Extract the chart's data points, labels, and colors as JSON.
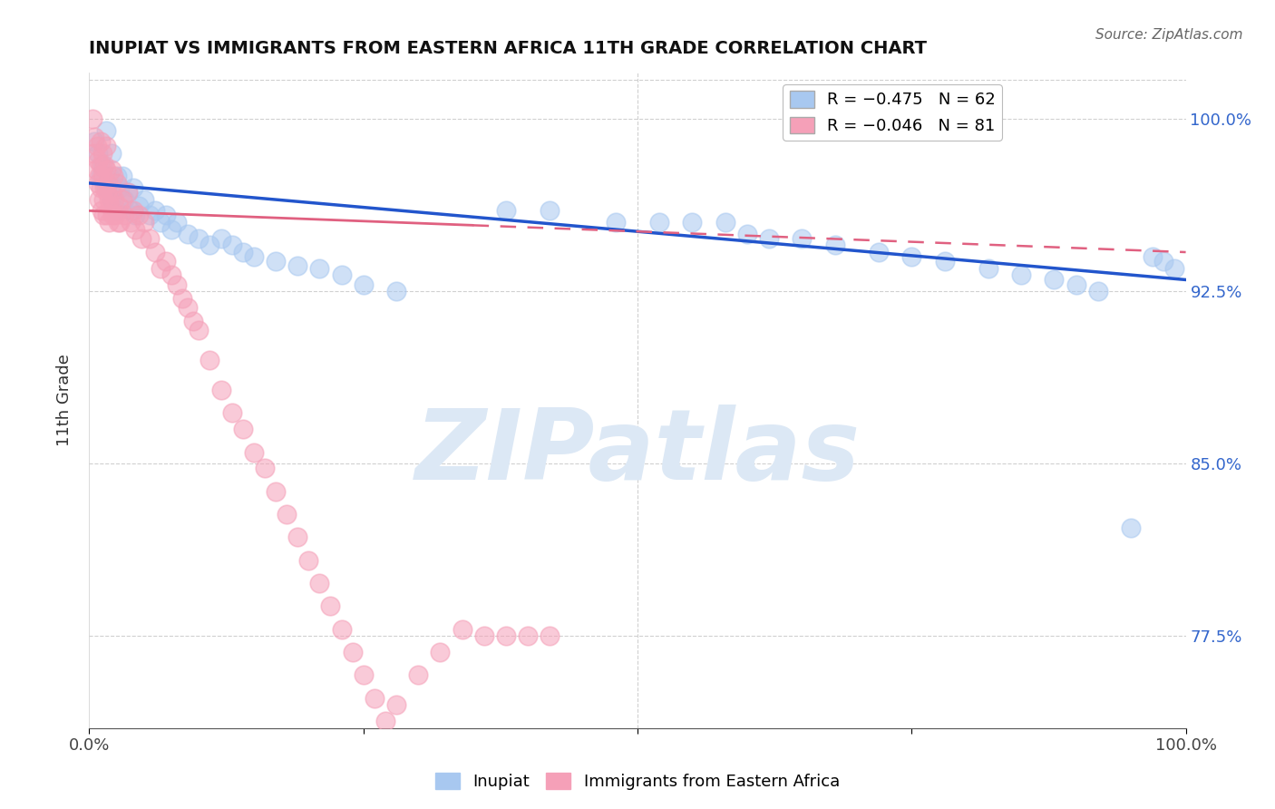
{
  "title": "INUPIAT VS IMMIGRANTS FROM EASTERN AFRICA 11TH GRADE CORRELATION CHART",
  "source_text": "Source: ZipAtlas.com",
  "ylabel": "11th Grade",
  "x_min": 0.0,
  "x_max": 1.0,
  "y_min": 0.735,
  "y_max": 1.02,
  "x_tick_labels": [
    "0.0%",
    "",
    "",
    "",
    "100.0%"
  ],
  "x_ticks": [
    0.0,
    0.25,
    0.5,
    0.75,
    1.0
  ],
  "y_tick_labels_right": [
    "77.5%",
    "85.0%",
    "92.5%",
    "100.0%"
  ],
  "y_ticks_right": [
    0.775,
    0.85,
    0.925,
    1.0
  ],
  "inupiat_color": "#a8c8f0",
  "eastern_africa_color": "#f5a0b8",
  "inupiat_line_color": "#2255cc",
  "eastern_africa_line_color": "#e06080",
  "watermark_color": "#dce8f5",
  "watermark_text": "ZIPatlas",
  "legend_label1": "R = −0.475   N = 62",
  "legend_label2": "R = −0.046   N = 81",
  "inupiat_x": [
    0.005,
    0.008,
    0.01,
    0.012,
    0.015,
    0.015,
    0.018,
    0.02,
    0.02,
    0.022,
    0.025,
    0.025,
    0.028,
    0.03,
    0.032,
    0.035,
    0.038,
    0.04,
    0.042,
    0.045,
    0.05,
    0.055,
    0.06,
    0.065,
    0.07,
    0.075,
    0.08,
    0.09,
    0.1,
    0.11,
    0.12,
    0.13,
    0.14,
    0.15,
    0.17,
    0.19,
    0.21,
    0.23,
    0.25,
    0.28,
    0.38,
    0.42,
    0.48,
    0.52,
    0.55,
    0.58,
    0.6,
    0.62,
    0.65,
    0.68,
    0.72,
    0.75,
    0.78,
    0.82,
    0.85,
    0.88,
    0.9,
    0.92,
    0.95,
    0.97,
    0.98,
    0.99
  ],
  "inupiat_y": [
    0.99,
    0.985,
    0.975,
    0.98,
    0.995,
    0.97,
    0.975,
    0.985,
    0.965,
    0.97,
    0.975,
    0.96,
    0.97,
    0.975,
    0.965,
    0.968,
    0.96,
    0.97,
    0.958,
    0.962,
    0.965,
    0.958,
    0.96,
    0.955,
    0.958,
    0.952,
    0.955,
    0.95,
    0.948,
    0.945,
    0.948,
    0.945,
    0.942,
    0.94,
    0.938,
    0.936,
    0.935,
    0.932,
    0.928,
    0.925,
    0.96,
    0.96,
    0.955,
    0.955,
    0.955,
    0.955,
    0.95,
    0.948,
    0.948,
    0.945,
    0.942,
    0.94,
    0.938,
    0.935,
    0.932,
    0.93,
    0.928,
    0.925,
    0.822,
    0.94,
    0.938,
    0.935
  ],
  "eastern_africa_x": [
    0.003,
    0.004,
    0.005,
    0.006,
    0.007,
    0.008,
    0.008,
    0.009,
    0.009,
    0.01,
    0.01,
    0.01,
    0.011,
    0.012,
    0.012,
    0.013,
    0.013,
    0.014,
    0.014,
    0.015,
    0.015,
    0.016,
    0.016,
    0.017,
    0.018,
    0.018,
    0.019,
    0.02,
    0.02,
    0.021,
    0.022,
    0.023,
    0.024,
    0.025,
    0.026,
    0.027,
    0.028,
    0.03,
    0.032,
    0.035,
    0.038,
    0.04,
    0.042,
    0.045,
    0.048,
    0.05,
    0.055,
    0.06,
    0.065,
    0.07,
    0.075,
    0.08,
    0.085,
    0.09,
    0.095,
    0.1,
    0.11,
    0.12,
    0.13,
    0.14,
    0.15,
    0.16,
    0.17,
    0.18,
    0.19,
    0.2,
    0.21,
    0.22,
    0.23,
    0.24,
    0.25,
    0.26,
    0.27,
    0.28,
    0.3,
    0.32,
    0.34,
    0.36,
    0.38,
    0.4,
    0.42
  ],
  "eastern_africa_y": [
    1.0,
    0.985,
    0.992,
    0.978,
    0.988,
    0.972,
    0.982,
    0.965,
    0.975,
    0.99,
    0.98,
    0.97,
    0.96,
    0.985,
    0.975,
    0.965,
    0.958,
    0.98,
    0.97,
    0.988,
    0.978,
    0.968,
    0.958,
    0.972,
    0.965,
    0.955,
    0.962,
    0.978,
    0.968,
    0.958,
    0.975,
    0.965,
    0.958,
    0.972,
    0.955,
    0.962,
    0.955,
    0.965,
    0.958,
    0.968,
    0.955,
    0.96,
    0.952,
    0.958,
    0.948,
    0.955,
    0.948,
    0.942,
    0.935,
    0.938,
    0.932,
    0.928,
    0.922,
    0.918,
    0.912,
    0.908,
    0.895,
    0.882,
    0.872,
    0.865,
    0.855,
    0.848,
    0.838,
    0.828,
    0.818,
    0.808,
    0.798,
    0.788,
    0.778,
    0.768,
    0.758,
    0.748,
    0.738,
    0.745,
    0.758,
    0.768,
    0.778,
    0.775,
    0.775,
    0.775,
    0.775
  ]
}
